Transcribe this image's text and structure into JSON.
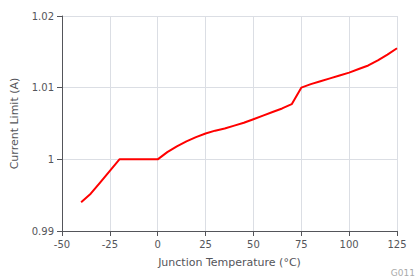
{
  "chart_data": {
    "type": "line",
    "xlabel": "Junction Temperature (°C)",
    "ylabel": "Current Limit (A)",
    "x": [
      -40,
      -35,
      -30,
      -25,
      -20,
      -15,
      -10,
      -5,
      0,
      5,
      10,
      15,
      20,
      25,
      30,
      35,
      40,
      45,
      50,
      55,
      60,
      65,
      70,
      75,
      80,
      85,
      90,
      95,
      100,
      105,
      110,
      115,
      120,
      125
    ],
    "values": [
      0.994,
      0.9952,
      0.9968,
      0.9984,
      1.0,
      1.0,
      1.0,
      1.0,
      1.0,
      1.001,
      1.0018,
      1.0025,
      1.0031,
      1.0036,
      1.004,
      1.0043,
      1.0047,
      1.0051,
      1.0056,
      1.0061,
      1.0066,
      1.0071,
      1.0077,
      1.01,
      1.0105,
      1.0109,
      1.0113,
      1.0117,
      1.0121,
      1.0126,
      1.0131,
      1.0138,
      1.0146,
      1.0155
    ],
    "color": "#ff0000",
    "xlim": [
      -50,
      125
    ],
    "ylim": [
      0.99,
      1.02
    ],
    "xticks": [
      -50,
      -25,
      0,
      25,
      50,
      75,
      100,
      125
    ],
    "yticks": [
      0.99,
      1,
      1.01,
      1.02
    ],
    "grid": true,
    "annotations": [
      "G011"
    ]
  }
}
